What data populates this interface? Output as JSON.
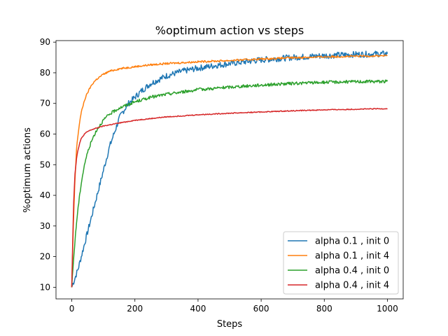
{
  "chart_data": {
    "type": "line",
    "title": "%optimum action vs steps",
    "xlabel": "Steps",
    "ylabel": "%optimum actions",
    "xlim": [
      -50,
      1050
    ],
    "ylim": [
      6.2,
      90.5
    ],
    "xticks": [
      0,
      200,
      400,
      600,
      800,
      1000
    ],
    "yticks": [
      10,
      20,
      30,
      40,
      50,
      60,
      70,
      80,
      90
    ],
    "grid": false,
    "legend_position": "lower-right",
    "series": [
      {
        "name": "alpha 0.1 , init 0",
        "color": "#1f77b4",
        "noise": 1.0,
        "x": [
          0,
          10,
          20,
          30,
          40,
          50,
          60,
          70,
          80,
          90,
          100,
          110,
          120,
          130,
          140,
          150,
          160,
          180,
          200,
          220,
          250,
          280,
          300,
          350,
          400,
          450,
          500,
          600,
          700,
          800,
          900,
          1000
        ],
        "y": [
          10,
          13,
          16,
          20,
          24,
          28,
          32,
          36,
          40,
          44,
          48,
          52,
          56,
          59,
          62,
          65,
          67,
          70,
          72,
          74,
          76.5,
          78,
          79,
          80.5,
          81.5,
          82.3,
          83,
          84.2,
          85,
          85.6,
          86,
          86.2
        ]
      },
      {
        "name": "alpha 0.1 , init 4",
        "color": "#ff7f0e",
        "noise": 0.3,
        "x": [
          0,
          5,
          10,
          15,
          20,
          25,
          30,
          40,
          50,
          60,
          70,
          80,
          100,
          120,
          150,
          200,
          250,
          300,
          400,
          500,
          600,
          700,
          800,
          900,
          1000
        ],
        "y": [
          10,
          30,
          45,
          55,
          60,
          64,
          67,
          71,
          73.5,
          75.5,
          77,
          78,
          79.5,
          80.5,
          81.3,
          82,
          82.6,
          83,
          83.6,
          84,
          84.5,
          84.9,
          85.2,
          85.4,
          85.6
        ]
      },
      {
        "name": "alpha 0.4 , init 0",
        "color": "#2ca02c",
        "noise": 0.5,
        "x": [
          0,
          5,
          10,
          15,
          20,
          25,
          30,
          40,
          50,
          60,
          70,
          80,
          100,
          120,
          150,
          200,
          250,
          300,
          400,
          500,
          600,
          700,
          800,
          900,
          1000
        ],
        "y": [
          10,
          18,
          25,
          31,
          36,
          40,
          44,
          50,
          54,
          57,
          59.5,
          61.5,
          64.5,
          66.5,
          68.5,
          70.5,
          72,
          73,
          74.5,
          75.3,
          76,
          76.5,
          76.9,
          77.1,
          77.2
        ]
      },
      {
        "name": "alpha 0.4 , init 4",
        "color": "#d62728",
        "noise": 0.15,
        "x": [
          0,
          3,
          6,
          10,
          15,
          20,
          25,
          30,
          40,
          50,
          60,
          80,
          100,
          150,
          200,
          300,
          400,
          500,
          600,
          700,
          800,
          900,
          1000
        ],
        "y": [
          10,
          25,
          38,
          47,
          52,
          55,
          57,
          58.5,
          60,
          60.8,
          61.3,
          62,
          62.6,
          63.6,
          64.5,
          65.6,
          66.3,
          66.8,
          67.2,
          67.6,
          67.9,
          68.1,
          68.3
        ]
      }
    ]
  }
}
